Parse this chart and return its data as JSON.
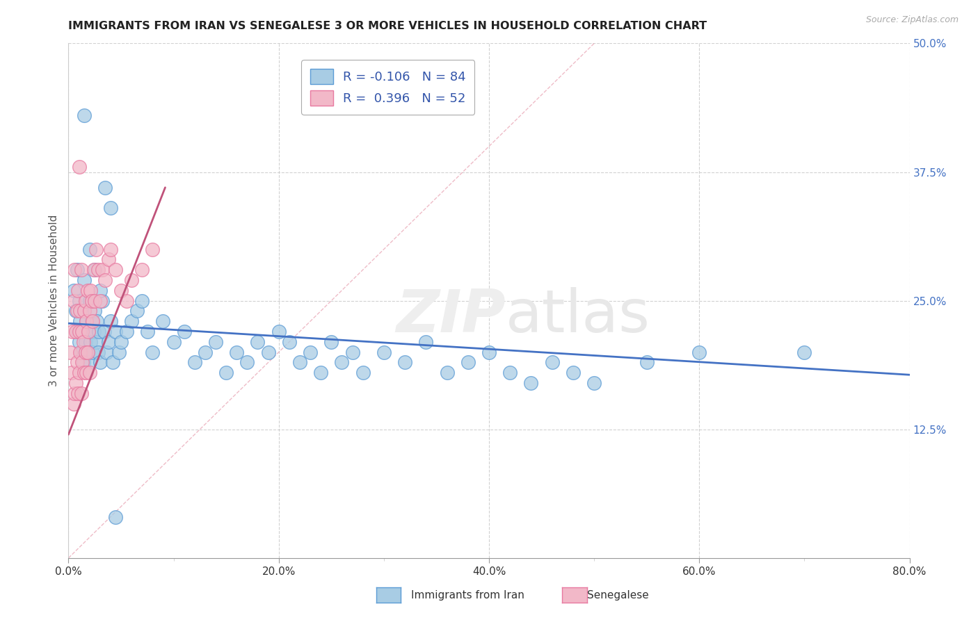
{
  "title": "IMMIGRANTS FROM IRAN VS SENEGALESE 3 OR MORE VEHICLES IN HOUSEHOLD CORRELATION CHART",
  "source": "Source: ZipAtlas.com",
  "ylabel": "3 or more Vehicles in Household",
  "legend_label_1": "Immigrants from Iran",
  "legend_label_2": "Senegalese",
  "R1": -0.106,
  "N1": 84,
  "R2": 0.396,
  "N2": 52,
  "color_blue": "#a8cce4",
  "color_pink": "#f2b8c8",
  "color_blue_edge": "#5b9bd5",
  "color_pink_edge": "#e879a0",
  "color_blue_line": "#4472c4",
  "color_pink_line": "#c0527a",
  "xlim": [
    0.0,
    0.8
  ],
  "ylim": [
    0.0,
    0.5
  ],
  "xtick_labels": [
    "0.0%",
    "",
    "",
    "",
    "",
    "",
    "",
    "",
    "20.0%",
    "",
    "",
    "",
    "",
    "",
    "",
    "",
    "40.0%",
    "",
    "",
    "",
    "",
    "",
    "",
    "",
    "60.0%",
    "",
    "",
    "",
    "",
    "",
    "",
    "",
    "80.0%"
  ],
  "xtick_values": [
    0.0,
    0.025,
    0.05,
    0.075,
    0.1,
    0.125,
    0.15,
    0.175,
    0.2,
    0.225,
    0.25,
    0.275,
    0.3,
    0.325,
    0.35,
    0.375,
    0.4,
    0.425,
    0.45,
    0.475,
    0.5,
    0.525,
    0.55,
    0.575,
    0.6,
    0.625,
    0.65,
    0.675,
    0.7,
    0.725,
    0.75,
    0.775,
    0.8
  ],
  "ytick_labels": [
    "12.5%",
    "25.0%",
    "37.5%",
    "50.0%"
  ],
  "ytick_values": [
    0.125,
    0.25,
    0.375,
    0.5
  ],
  "blue_trend_x": [
    0.0,
    0.8
  ],
  "blue_trend_y": [
    0.228,
    0.178
  ],
  "pink_trend_x": [
    0.0,
    0.092
  ],
  "pink_trend_y": [
    0.12,
    0.36
  ],
  "ref_line_x": [
    0.0,
    0.5
  ],
  "ref_line_y": [
    0.0,
    0.5
  ],
  "blue_x": [
    0.005,
    0.007,
    0.008,
    0.009,
    0.01,
    0.01,
    0.011,
    0.012,
    0.013,
    0.014,
    0.015,
    0.015,
    0.016,
    0.017,
    0.018,
    0.019,
    0.02,
    0.02,
    0.021,
    0.022,
    0.023,
    0.024,
    0.025,
    0.026,
    0.027,
    0.028,
    0.029,
    0.03,
    0.032,
    0.034,
    0.036,
    0.038,
    0.04,
    0.042,
    0.045,
    0.048,
    0.05,
    0.055,
    0.06,
    0.065,
    0.07,
    0.075,
    0.08,
    0.09,
    0.1,
    0.11,
    0.12,
    0.13,
    0.14,
    0.15,
    0.16,
    0.17,
    0.18,
    0.19,
    0.2,
    0.21,
    0.22,
    0.23,
    0.24,
    0.25,
    0.26,
    0.27,
    0.28,
    0.3,
    0.32,
    0.34,
    0.36,
    0.38,
    0.4,
    0.42,
    0.44,
    0.46,
    0.48,
    0.5,
    0.55,
    0.6,
    0.7,
    0.015,
    0.02,
    0.025,
    0.03,
    0.035,
    0.04,
    0.045
  ],
  "blue_y": [
    0.26,
    0.24,
    0.28,
    0.22,
    0.21,
    0.25,
    0.23,
    0.2,
    0.22,
    0.19,
    0.24,
    0.27,
    0.21,
    0.23,
    0.2,
    0.22,
    0.19,
    0.25,
    0.21,
    0.23,
    0.2,
    0.22,
    0.24,
    0.21,
    0.23,
    0.2,
    0.22,
    0.19,
    0.25,
    0.22,
    0.2,
    0.21,
    0.23,
    0.19,
    0.22,
    0.2,
    0.21,
    0.22,
    0.23,
    0.24,
    0.25,
    0.22,
    0.2,
    0.23,
    0.21,
    0.22,
    0.19,
    0.2,
    0.21,
    0.18,
    0.2,
    0.19,
    0.21,
    0.2,
    0.22,
    0.21,
    0.19,
    0.2,
    0.18,
    0.21,
    0.19,
    0.2,
    0.18,
    0.2,
    0.19,
    0.21,
    0.18,
    0.19,
    0.2,
    0.18,
    0.17,
    0.19,
    0.18,
    0.17,
    0.19,
    0.2,
    0.2,
    0.43,
    0.3,
    0.28,
    0.26,
    0.36,
    0.34,
    0.04
  ],
  "pink_x": [
    0.002,
    0.003,
    0.004,
    0.005,
    0.005,
    0.006,
    0.006,
    0.007,
    0.007,
    0.008,
    0.008,
    0.009,
    0.009,
    0.01,
    0.01,
    0.011,
    0.011,
    0.012,
    0.012,
    0.013,
    0.013,
    0.014,
    0.015,
    0.015,
    0.016,
    0.016,
    0.017,
    0.017,
    0.018,
    0.018,
    0.019,
    0.02,
    0.02,
    0.021,
    0.022,
    0.023,
    0.024,
    0.025,
    0.026,
    0.028,
    0.03,
    0.032,
    0.035,
    0.038,
    0.04,
    0.045,
    0.05,
    0.055,
    0.06,
    0.07,
    0.08,
    0.01
  ],
  "pink_y": [
    0.2,
    0.18,
    0.22,
    0.15,
    0.25,
    0.16,
    0.28,
    0.17,
    0.22,
    0.19,
    0.24,
    0.16,
    0.26,
    0.18,
    0.22,
    0.2,
    0.24,
    0.16,
    0.28,
    0.19,
    0.22,
    0.21,
    0.18,
    0.24,
    0.2,
    0.25,
    0.18,
    0.23,
    0.2,
    0.26,
    0.22,
    0.18,
    0.24,
    0.26,
    0.25,
    0.23,
    0.28,
    0.25,
    0.3,
    0.28,
    0.25,
    0.28,
    0.27,
    0.29,
    0.3,
    0.28,
    0.26,
    0.25,
    0.27,
    0.28,
    0.3,
    0.38
  ]
}
